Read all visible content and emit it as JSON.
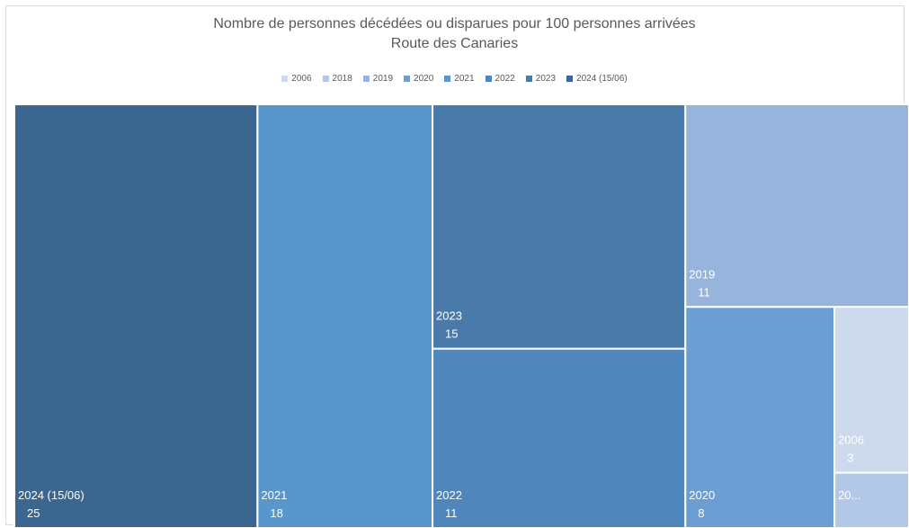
{
  "chart_data": {
    "type": "treemap",
    "title": "Nombre de personnes décédées ou disparues pour 100 personnes arrivées",
    "subtitle": "Route des Canaries",
    "legend_placement": "top",
    "items": [
      {
        "label": "2024 (15/06)",
        "value": 25,
        "value_label": "25",
        "color": "#3a6690"
      },
      {
        "label": "2021",
        "value": 18,
        "value_label": "18",
        "color": "#5896ce"
      },
      {
        "label": "2023",
        "value": 15,
        "value_label": "15",
        "color": "#4a7aaa"
      },
      {
        "label": "2022",
        "value": 11,
        "value_label": "11",
        "color": "#4f86bc"
      },
      {
        "label": "2019",
        "value": 11,
        "value_label": "11",
        "color": "#97b5dc"
      },
      {
        "label": "2020",
        "value": 8,
        "value_label": "8",
        "color": "#6b9fd4"
      },
      {
        "label": "2006",
        "value": 3,
        "value_label": "3",
        "color": "#cdd9ec"
      },
      {
        "label": "20...",
        "value": 1,
        "value_label": "",
        "color": "#b3c8e6"
      }
    ],
    "legend": [
      {
        "label": "2006",
        "color": "#cdd9ec"
      },
      {
        "label": "2018",
        "color": "#b3c8e6"
      },
      {
        "label": "2019",
        "color": "#97b5dc"
      },
      {
        "label": "2020",
        "color": "#6b9fd4"
      },
      {
        "label": "2021",
        "color": "#5896ce"
      },
      {
        "label": "2022",
        "color": "#4f86bc"
      },
      {
        "label": "2023",
        "color": "#4a7aaa"
      },
      {
        "label": "2024 (15/06)",
        "color": "#3a6690"
      }
    ]
  }
}
